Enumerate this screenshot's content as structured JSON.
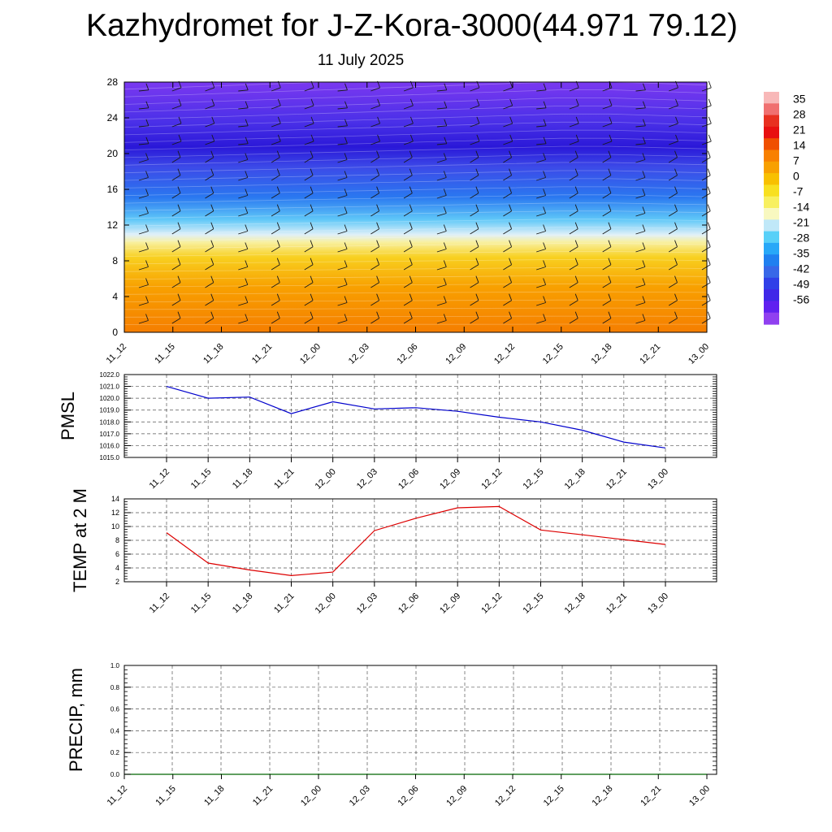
{
  "title": "Kazhydromet for J-Z-Kora-3000(44.971 79.12)",
  "subtitle": "11 July 2025",
  "colors": {
    "pmsl_line": "#0000cc",
    "temp_line": "#dd0000",
    "precip_line": "#006600",
    "grid": "#555555"
  },
  "chart_data": [
    {
      "id": "cross-section",
      "type": "heatmap",
      "title": "",
      "xlabel": "",
      "ylabel": "",
      "x_ticks": [
        "11_12",
        "11_15",
        "11_18",
        "11_21",
        "12_00",
        "12_03",
        "12_06",
        "12_09",
        "12_12",
        "12_15",
        "12_18",
        "12_21",
        "13_00"
      ],
      "y_ticks": [
        0,
        4,
        8,
        12,
        16,
        20,
        24,
        28
      ],
      "ylim": [
        0,
        28
      ],
      "freezing_level": [
        10.4,
        10.5,
        10.6,
        10.7,
        10.8,
        10.9,
        11.0,
        11.1,
        11.2,
        11.3,
        11.3,
        11.2,
        11.1
      ],
      "colorbar_labels": [
        "35",
        "28",
        "21",
        "14",
        "7",
        "0",
        "-7",
        "-14",
        "-21",
        "-28",
        "-35",
        "-42",
        "-49",
        "-56"
      ],
      "colorbar_colors": [
        "#f8b8b8",
        "#f07070",
        "#e83020",
        "#e81010",
        "#f05000",
        "#f88000",
        "#f8a000",
        "#f8c000",
        "#f8e020",
        "#f8f060",
        "#f8f8c0",
        "#c0e8f8",
        "#58d0f8",
        "#28a8f8",
        "#2080f0",
        "#3868e8",
        "#3040e8",
        "#4028e8",
        "#6020f0",
        "#9040f0"
      ],
      "wind_barbs": "present"
    },
    {
      "id": "pmsl",
      "type": "line",
      "ylabel": "PMSL",
      "categories": [
        "11_12",
        "11_15",
        "11_18",
        "11_21",
        "12_00",
        "12_03",
        "12_06",
        "12_09",
        "12_12",
        "12_15",
        "12_18",
        "12_21",
        "13_00"
      ],
      "y_ticks": [
        "1015.0",
        "1016.0",
        "1017.0",
        "1018.0",
        "1019.0",
        "1020.0",
        "1021.0",
        "1022.0"
      ],
      "ylim": [
        1015.0,
        1022.0
      ],
      "series": [
        {
          "values": [
            1021.0,
            1020.0,
            1020.1,
            1018.7,
            1019.7,
            1019.1,
            1019.2,
            1018.9,
            1018.4,
            1018.0,
            1017.3,
            1016.3,
            1015.8
          ]
        }
      ]
    },
    {
      "id": "temp",
      "type": "line",
      "ylabel": "TEMP at 2 M",
      "categories": [
        "11_12",
        "11_15",
        "11_18",
        "11_21",
        "12_00",
        "12_03",
        "12_06",
        "12_09",
        "12_12",
        "12_15",
        "12_18",
        "12_21",
        "13_00"
      ],
      "y_ticks": [
        "2",
        "4",
        "6",
        "8",
        "10",
        "12",
        "14"
      ],
      "ylim": [
        2,
        14
      ],
      "series": [
        {
          "values": [
            9.1,
            4.7,
            3.7,
            2.9,
            3.4,
            9.4,
            11.2,
            12.7,
            12.9,
            9.5,
            8.8,
            8.1,
            7.4
          ]
        }
      ]
    },
    {
      "id": "precip",
      "type": "line",
      "ylabel": "PRECIP, mm",
      "categories": [
        "11_12",
        "11_15",
        "11_18",
        "11_21",
        "12_00",
        "12_03",
        "12_06",
        "12_09",
        "12_12",
        "12_15",
        "12_18",
        "12_21",
        "13_00"
      ],
      "y_ticks": [
        "0.0",
        "0.2",
        "0.4",
        "0.6",
        "0.8",
        "1.0"
      ],
      "ylim": [
        0.0,
        1.0
      ],
      "series": [
        {
          "values": [
            0,
            0,
            0,
            0,
            0,
            0,
            0,
            0,
            0,
            0,
            0,
            0,
            0
          ]
        }
      ]
    }
  ]
}
